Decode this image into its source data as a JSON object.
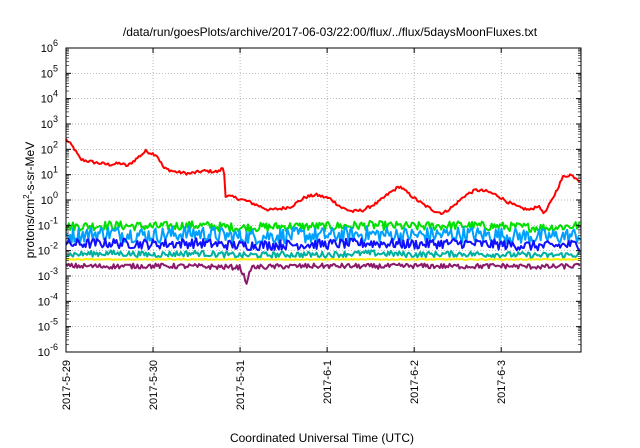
{
  "chart_data": {
    "type": "line",
    "title": "/data/run/goesPlots/archive/2017-06-03/22:00/flux/../flux/5daysMoonFluxes.txt",
    "xlabel": "Coordinated Universal Time (UTC)",
    "ylabel": {
      "prefix": "protons/cm",
      "superscript": "2",
      "suffix": "-s-sr-MeV"
    },
    "y_scale": "log",
    "ylim": [
      1e-06,
      1000000.0
    ],
    "y_ticks": [
      {
        "value": 1e-06,
        "base": "10",
        "exp": "-6"
      },
      {
        "value": 1e-05,
        "base": "10",
        "exp": "-5"
      },
      {
        "value": 0.0001,
        "base": "10",
        "exp": "-4"
      },
      {
        "value": 0.001,
        "base": "10",
        "exp": "-3"
      },
      {
        "value": 0.01,
        "base": "10",
        "exp": "-2"
      },
      {
        "value": 0.1,
        "base": "10",
        "exp": "-1"
      },
      {
        "value": 1.0,
        "base": "10",
        "exp": "0"
      },
      {
        "value": 10.0,
        "base": "10",
        "exp": "1"
      },
      {
        "value": 100.0,
        "base": "10",
        "exp": "2"
      },
      {
        "value": 1000.0,
        "base": "10",
        "exp": "3"
      },
      {
        "value": 10000.0,
        "base": "10",
        "exp": "4"
      },
      {
        "value": 100000.0,
        "base": "10",
        "exp": "5"
      },
      {
        "value": 1000000.0,
        "base": "10",
        "exp": "6"
      }
    ],
    "x_range": [
      "2017-05-29",
      "2017-06-03 22:00"
    ],
    "x_ticks": [
      "2017-5-29",
      "2017-5-30",
      "2017-5-31",
      "2017-6-1",
      "2017-6-2",
      "2017-6-3"
    ],
    "grid": true,
    "legend": "none",
    "series": [
      {
        "color": "#ff0000",
        "noise": 0.06,
        "points": [
          [
            "2017-05-29 00:00",
            250
          ],
          [
            "2017-05-29 02:00",
            120
          ],
          [
            "2017-05-29 04:00",
            40
          ],
          [
            "2017-05-29 08:00",
            30
          ],
          [
            "2017-05-29 12:00",
            25
          ],
          [
            "2017-05-29 15:00",
            28
          ],
          [
            "2017-05-29 17:00",
            22
          ],
          [
            "2017-05-29 20:00",
            50
          ],
          [
            "2017-05-29 22:00",
            85
          ],
          [
            "2017-05-30 01:00",
            60
          ],
          [
            "2017-05-30 03:00",
            18
          ],
          [
            "2017-05-30 06:00",
            13
          ],
          [
            "2017-05-30 10:00",
            11
          ],
          [
            "2017-05-30 14:00",
            14
          ],
          [
            "2017-05-30 18:00",
            13
          ],
          [
            "2017-05-30 19:30",
            20
          ],
          [
            "2017-05-30 20:00",
            1.5
          ],
          [
            "2017-05-30 23:00",
            1.2
          ],
          [
            "2017-05-31 02:00",
            0.9
          ],
          [
            "2017-05-31 05:00",
            0.6
          ],
          [
            "2017-05-31 08:00",
            0.4
          ],
          [
            "2017-05-31 11:00",
            0.45
          ],
          [
            "2017-05-31 14:00",
            0.55
          ],
          [
            "2017-05-31 18:00",
            1.3
          ],
          [
            "2017-05-31 21:00",
            1.6
          ],
          [
            "2017-06-01 01:00",
            1.1
          ],
          [
            "2017-06-01 04:00",
            0.5
          ],
          [
            "2017-06-01 07:00",
            0.35
          ],
          [
            "2017-06-01 10:00",
            0.4
          ],
          [
            "2017-06-01 14:00",
            0.8
          ],
          [
            "2017-06-01 17:00",
            1.8
          ],
          [
            "2017-06-01 20:00",
            3.5
          ],
          [
            "2017-06-01 22:00",
            2.0
          ],
          [
            "2017-06-02 00:00",
            1.2
          ],
          [
            "2017-06-02 03:00",
            0.6
          ],
          [
            "2017-06-02 06:00",
            0.35
          ],
          [
            "2017-06-02 08:00",
            0.3
          ],
          [
            "2017-06-02 11:00",
            0.6
          ],
          [
            "2017-06-02 14:00",
            1.5
          ],
          [
            "2017-06-02 17:00",
            2.5
          ],
          [
            "2017-06-02 20:00",
            2.2
          ],
          [
            "2017-06-02 23:00",
            1.5
          ],
          [
            "2017-06-03 02:00",
            0.8
          ],
          [
            "2017-06-03 05:00",
            0.5
          ],
          [
            "2017-06-03 08:00",
            0.4
          ],
          [
            "2017-06-03 10:00",
            0.6
          ],
          [
            "2017-06-03 12:00",
            0.3
          ],
          [
            "2017-06-03 14:00",
            1.0
          ],
          [
            "2017-06-03 17:00",
            8
          ],
          [
            "2017-06-03 19:00",
            10
          ],
          [
            "2017-06-03 21:00",
            7
          ],
          [
            "2017-06-03 22:00",
            5
          ]
        ]
      },
      {
        "color": "#00e000",
        "noise": 0.18,
        "points": [
          [
            "2017-05-29 00:00",
            0.09
          ],
          [
            "2017-05-29 12:00",
            0.1
          ],
          [
            "2017-05-30 00:00",
            0.09
          ],
          [
            "2017-05-30 12:00",
            0.1
          ],
          [
            "2017-05-31 00:00",
            0.08
          ],
          [
            "2017-05-31 12:00",
            0.09
          ],
          [
            "2017-06-01 00:00",
            0.09
          ],
          [
            "2017-06-01 12:00",
            0.1
          ],
          [
            "2017-06-02 00:00",
            0.09
          ],
          [
            "2017-06-02 12:00",
            0.1
          ],
          [
            "2017-06-03 00:00",
            0.09
          ],
          [
            "2017-06-03 12:00",
            0.08
          ],
          [
            "2017-06-03 22:00",
            0.1
          ]
        ]
      },
      {
        "color": "#00a0ff",
        "noise": 0.32,
        "points": [
          [
            "2017-05-29 00:00",
            0.04
          ],
          [
            "2017-05-29 12:00",
            0.05
          ],
          [
            "2017-05-30 00:00",
            0.04
          ],
          [
            "2017-05-30 12:00",
            0.05
          ],
          [
            "2017-05-31 00:00",
            0.035
          ],
          [
            "2017-05-31 12:00",
            0.04
          ],
          [
            "2017-06-01 00:00",
            0.04
          ],
          [
            "2017-06-01 12:00",
            0.045
          ],
          [
            "2017-06-02 00:00",
            0.04
          ],
          [
            "2017-06-02 12:00",
            0.045
          ],
          [
            "2017-06-03 00:00",
            0.04
          ],
          [
            "2017-06-03 12:00",
            0.035
          ],
          [
            "2017-06-03 22:00",
            0.04
          ]
        ]
      },
      {
        "color": "#1010ff",
        "noise": 0.2,
        "points": [
          [
            "2017-05-29 00:00",
            0.018
          ],
          [
            "2017-05-29 12:00",
            0.02
          ],
          [
            "2017-05-30 00:00",
            0.018
          ],
          [
            "2017-05-30 12:00",
            0.02
          ],
          [
            "2017-05-31 00:00",
            0.016
          ],
          [
            "2017-05-31 12:00",
            0.017
          ],
          [
            "2017-06-01 00:00",
            0.018
          ],
          [
            "2017-06-01 12:00",
            0.02
          ],
          [
            "2017-06-02 00:00",
            0.018
          ],
          [
            "2017-06-02 12:00",
            0.02
          ],
          [
            "2017-06-03 00:00",
            0.017
          ],
          [
            "2017-06-03 12:00",
            0.015
          ],
          [
            "2017-06-03 22:00",
            0.018
          ]
        ]
      },
      {
        "color": "#00b0a0",
        "noise": 0.12,
        "points": [
          [
            "2017-05-29 00:00",
            0.007
          ],
          [
            "2017-05-29 12:00",
            0.008
          ],
          [
            "2017-05-30 00:00",
            0.007
          ],
          [
            "2017-05-30 12:00",
            0.008
          ],
          [
            "2017-05-31 00:00",
            0.0065
          ],
          [
            "2017-05-31 12:00",
            0.007
          ],
          [
            "2017-06-01 00:00",
            0.007
          ],
          [
            "2017-06-01 12:00",
            0.008
          ],
          [
            "2017-06-02 00:00",
            0.007
          ],
          [
            "2017-06-02 12:00",
            0.0075
          ],
          [
            "2017-06-03 00:00",
            0.007
          ],
          [
            "2017-06-03 12:00",
            0.0065
          ],
          [
            "2017-06-03 22:00",
            0.007
          ]
        ]
      },
      {
        "color": "#ffee00",
        "noise": 0.02,
        "points": [
          [
            "2017-05-29 00:00",
            0.0045
          ],
          [
            "2017-05-30 12:00",
            0.0045
          ],
          [
            "2017-06-01 12:00",
            0.0045
          ],
          [
            "2017-06-03 22:00",
            0.0045
          ]
        ]
      },
      {
        "color": "#8b1a6b",
        "noise": 0.1,
        "points": [
          [
            "2017-05-29 00:00",
            0.0025
          ],
          [
            "2017-05-29 12:00",
            0.0024
          ],
          [
            "2017-05-30 00:00",
            0.0025
          ],
          [
            "2017-05-30 12:00",
            0.0024
          ],
          [
            "2017-05-31 00:00",
            0.0022
          ],
          [
            "2017-05-31 02:00",
            0.0005
          ],
          [
            "2017-05-31 03:00",
            0.0022
          ],
          [
            "2017-05-31 12:00",
            0.0024
          ],
          [
            "2017-06-01 00:00",
            0.0025
          ],
          [
            "2017-06-01 12:00",
            0.0024
          ],
          [
            "2017-06-02 00:00",
            0.0025
          ],
          [
            "2017-06-02 12:00",
            0.0024
          ],
          [
            "2017-06-03 00:00",
            0.0025
          ],
          [
            "2017-06-03 12:00",
            0.0023
          ],
          [
            "2017-06-03 22:00",
            0.0025
          ]
        ]
      }
    ]
  }
}
